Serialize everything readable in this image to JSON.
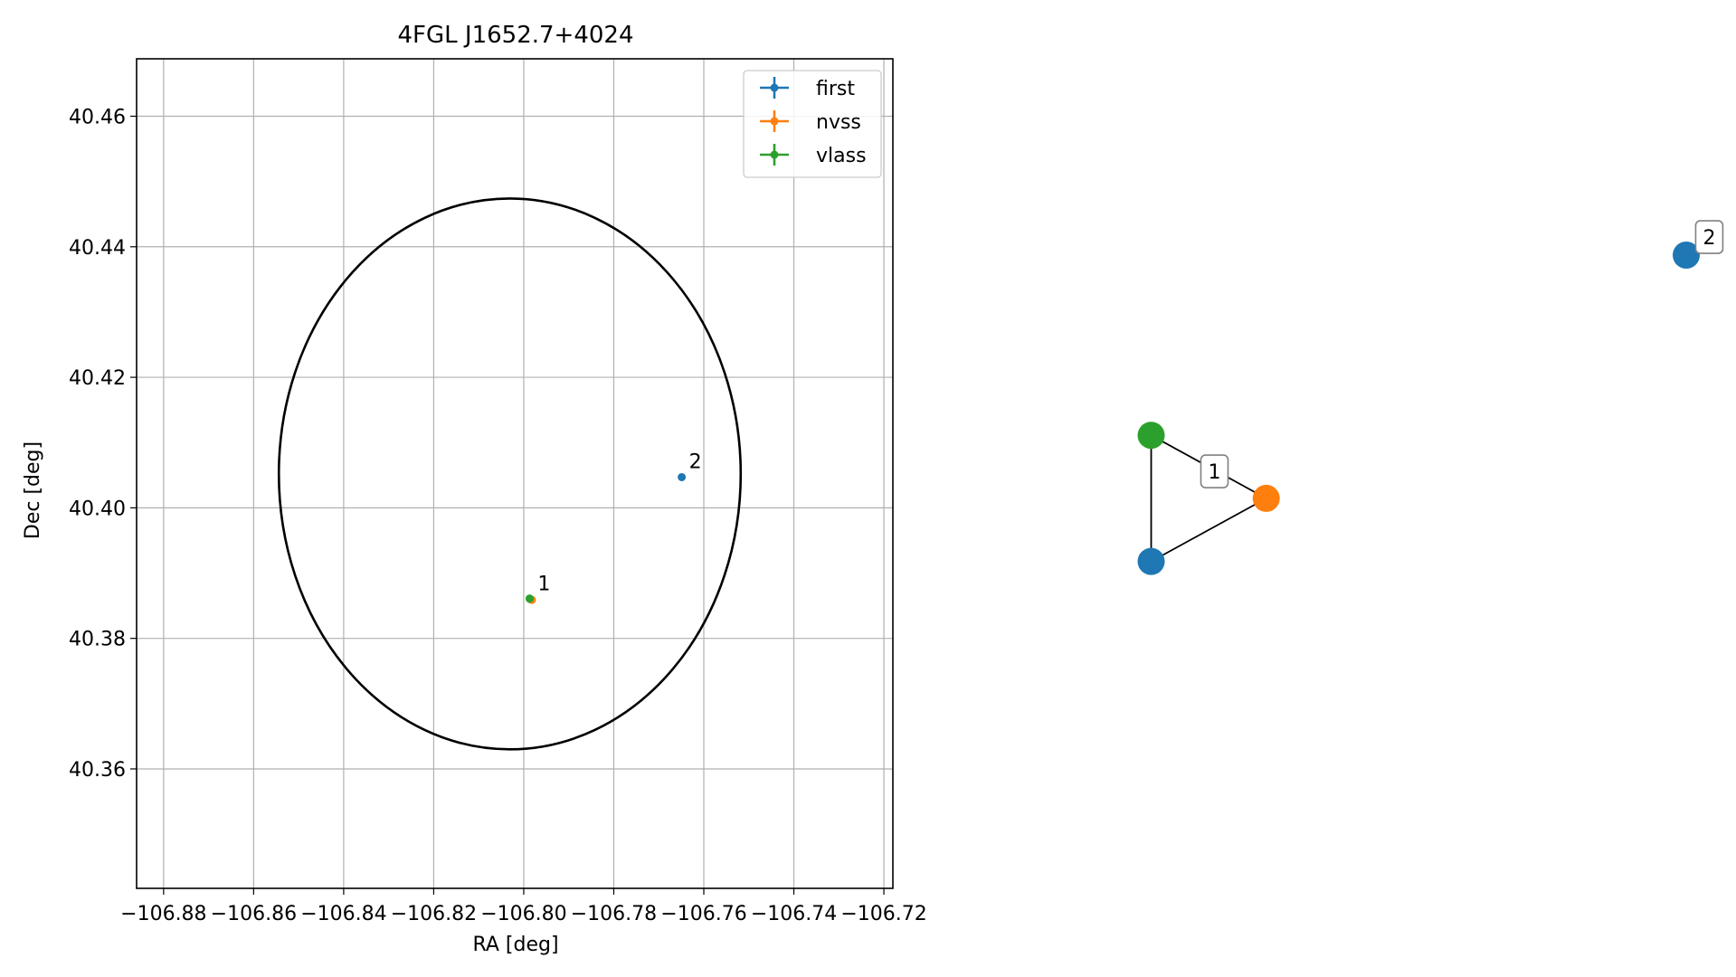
{
  "chart_data": [
    {
      "type": "scatter",
      "title": "4FGL J1652.7+4024",
      "xlabel": "RA [deg]",
      "ylabel": "Dec [deg]",
      "xlim": [
        -106.886,
        -106.718
      ],
      "ylim": [
        40.3417,
        40.4688
      ],
      "x_ticks": [
        -106.88,
        -106.86,
        -106.84,
        -106.82,
        -106.8,
        -106.78,
        -106.76,
        -106.74,
        -106.72
      ],
      "x_tick_labels": [
        "−106.88",
        "−106.86",
        "−106.84",
        "−106.82",
        "−106.80",
        "−106.78",
        "−106.76",
        "−106.74",
        "−106.72"
      ],
      "y_ticks": [
        40.36,
        40.38,
        40.4,
        40.42,
        40.44,
        40.46
      ],
      "y_tick_labels": [
        "40.36",
        "40.38",
        "40.40",
        "40.42",
        "40.44",
        "40.46"
      ],
      "grid": true,
      "legend_position": "upper right",
      "ellipse": {
        "center_ra": -106.8031,
        "center_dec": 40.4052,
        "ra_semi_axis": 0.0513,
        "dec_semi_axis": 0.0422,
        "color": "#000000"
      },
      "series": [
        {
          "name": "first",
          "color": "#1f77b4",
          "points": [
            {
              "ra": -106.7985,
              "dec": 40.386
            },
            {
              "ra": -106.7649,
              "dec": 40.4047
            }
          ]
        },
        {
          "name": "nvss",
          "color": "#ff7f0e",
          "points": [
            {
              "ra": -106.7982,
              "dec": 40.3859
            }
          ]
        },
        {
          "name": "vlass",
          "color": "#2ca02c",
          "points": [
            {
              "ra": -106.7987,
              "dec": 40.3861
            }
          ]
        }
      ],
      "annotations": [
        {
          "text": "1",
          "ra": -106.7985,
          "dec": 40.386
        },
        {
          "text": "2",
          "ra": -106.7649,
          "dec": 40.4047
        }
      ]
    },
    {
      "type": "network",
      "axes": false,
      "nodes": [
        {
          "id": "first-1",
          "color": "#1f77b4",
          "x": 0.07,
          "y": 0.32
        },
        {
          "id": "nvss-1",
          "color": "#ff7f0e",
          "x": 0.27,
          "y": 0.46
        },
        {
          "id": "vlass-1",
          "color": "#2ca02c",
          "x": 0.07,
          "y": 0.6
        },
        {
          "id": "first-2",
          "color": "#1f77b4",
          "x": 1.0,
          "y": 1.0
        }
      ],
      "edges": [
        [
          "first-1",
          "nvss-1"
        ],
        [
          "nvss-1",
          "vlass-1"
        ],
        [
          "vlass-1",
          "first-1"
        ]
      ],
      "group_labels": [
        {
          "text": "1",
          "x": 0.18,
          "y": 0.52
        },
        {
          "text": "2",
          "x": 1.04,
          "y": 1.04
        }
      ]
    }
  ]
}
